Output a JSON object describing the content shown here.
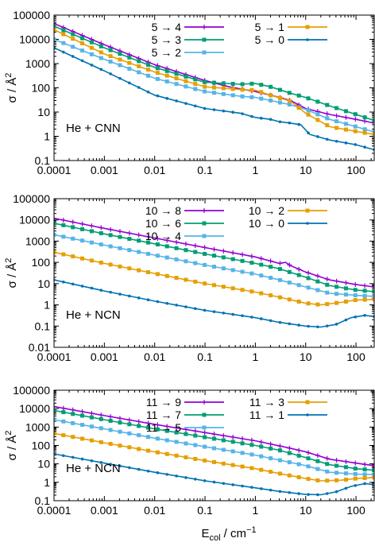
{
  "figure": {
    "xlabel": "E",
    "xlabel_sub": "col",
    "xlabel_unit": " / cm",
    "xlabel_sup": "−1",
    "ylabel": "σ / Å",
    "ylabel_sup": "2"
  },
  "chart_data": [
    {
      "type": "line",
      "system_label": "He + CNN",
      "xscale": "log",
      "yscale": "log",
      "xlim": [
        0.0001,
        230
      ],
      "ylim": [
        0.1,
        100000
      ],
      "x_ticks": [
        "0.0001",
        "0.001",
        "0.01",
        "0.1",
        "1",
        "10",
        "100"
      ],
      "y_ticks": [
        "0.1",
        "1",
        "10",
        "100",
        "1000",
        "10000",
        "100000"
      ],
      "legend_position": "top-right",
      "series": [
        {
          "name": "5 → 4",
          "color": "#9400d3",
          "marker": "plus",
          "points": [
            [
              0.0001,
              45000
            ],
            [
              0.001,
              6000
            ],
            [
              0.01,
              900
            ],
            [
              0.1,
              200
            ],
            [
              0.3,
              110
            ],
            [
              1,
              70
            ],
            [
              2,
              50
            ],
            [
              5,
              30
            ],
            [
              10,
              14
            ],
            [
              30,
              8
            ],
            [
              100,
              5
            ],
            [
              230,
              3.5
            ]
          ]
        },
        {
          "name": "5 → 3",
          "color": "#009e73",
          "marker": "square",
          "points": [
            [
              0.0001,
              35000
            ],
            [
              0.001,
              4500
            ],
            [
              0.01,
              700
            ],
            [
              0.1,
              170
            ],
            [
              0.5,
              140
            ],
            [
              1,
              150
            ],
            [
              2,
              110
            ],
            [
              5,
              60
            ],
            [
              10,
              40
            ],
            [
              30,
              18
            ],
            [
              100,
              8
            ],
            [
              230,
              4.5
            ]
          ]
        },
        {
          "name": "5 → 2",
          "color": "#56b4e9",
          "marker": "square",
          "points": [
            [
              0.0001,
              10000
            ],
            [
              0.001,
              1500
            ],
            [
              0.01,
              250
            ],
            [
              0.1,
              70
            ],
            [
              0.5,
              45
            ],
            [
              1,
              40
            ],
            [
              2,
              30
            ],
            [
              5,
              20
            ],
            [
              10,
              13
            ],
            [
              30,
              5
            ],
            [
              100,
              2.5
            ],
            [
              230,
              1.5
            ]
          ]
        },
        {
          "name": "5 → 1",
          "color": "#e69f00",
          "marker": "square",
          "points": [
            [
              0.0001,
              25000
            ],
            [
              0.001,
              2500
            ],
            [
              0.01,
              450
            ],
            [
              0.1,
              110
            ],
            [
              0.5,
              85
            ],
            [
              1,
              80
            ],
            [
              2,
              50
            ],
            [
              5,
              28
            ],
            [
              10,
              9
            ],
            [
              30,
              2.5
            ],
            [
              100,
              1.6
            ],
            [
              230,
              1.2
            ]
          ]
        },
        {
          "name": "5 → 0",
          "color": "#0072b2",
          "marker": "dot",
          "points": [
            [
              0.0001,
              4500
            ],
            [
              0.001,
              500
            ],
            [
              0.01,
              50
            ],
            [
              0.1,
              14
            ],
            [
              0.5,
              9
            ],
            [
              1,
              6
            ],
            [
              2,
              5
            ],
            [
              3,
              4
            ],
            [
              5,
              3.5
            ],
            [
              8,
              3
            ],
            [
              12,
              1.2
            ],
            [
              30,
              0.7
            ],
            [
              100,
              0.45
            ],
            [
              230,
              0.28
            ]
          ]
        }
      ]
    },
    {
      "type": "line",
      "system_label": "He + NCN",
      "xscale": "log",
      "yscale": "log",
      "xlim": [
        0.0001,
        230
      ],
      "ylim": [
        0.01,
        100000
      ],
      "x_ticks": [
        "0.0001",
        "0.001",
        "0.01",
        "0.1",
        "1",
        "10",
        "100"
      ],
      "y_ticks": [
        "0.01",
        "0.1",
        "1",
        "10",
        "100",
        "1000",
        "10000",
        "100000"
      ],
      "legend_position": "top-right",
      "series": [
        {
          "name": "10 → 8",
          "color": "#9400d3",
          "marker": "plus",
          "points": [
            [
              0.0001,
              12000
            ],
            [
              0.001,
              4000
            ],
            [
              0.01,
              1400
            ],
            [
              0.1,
              500
            ],
            [
              1,
              180
            ],
            [
              3,
              90
            ],
            [
              4,
              100
            ],
            [
              5,
              70
            ],
            [
              10,
              35
            ],
            [
              30,
              15
            ],
            [
              100,
              9
            ],
            [
              230,
              7
            ]
          ]
        },
        {
          "name": "10 → 6",
          "color": "#009e73",
          "marker": "square",
          "points": [
            [
              0.0001,
              7000
            ],
            [
              0.001,
              2200
            ],
            [
              0.01,
              750
            ],
            [
              0.1,
              250
            ],
            [
              1,
              90
            ],
            [
              3,
              50
            ],
            [
              10,
              20
            ],
            [
              30,
              8
            ],
            [
              100,
              5
            ],
            [
              230,
              4.2
            ]
          ]
        },
        {
          "name": "10 → 4",
          "color": "#56b4e9",
          "marker": "square",
          "points": [
            [
              0.0001,
              2000
            ],
            [
              0.001,
              650
            ],
            [
              0.01,
              220
            ],
            [
              0.1,
              75
            ],
            [
              1,
              28
            ],
            [
              3,
              15
            ],
            [
              10,
              7
            ],
            [
              30,
              3.5
            ],
            [
              100,
              2.8
            ],
            [
              230,
              2.5
            ]
          ]
        },
        {
          "name": "10 → 2",
          "color": "#e69f00",
          "marker": "square",
          "points": [
            [
              0.0001,
              300
            ],
            [
              0.001,
              90
            ],
            [
              0.01,
              30
            ],
            [
              0.1,
              10
            ],
            [
              1,
              4
            ],
            [
              3,
              2.3
            ],
            [
              10,
              1.2
            ],
            [
              20,
              1
            ],
            [
              50,
              1.3
            ],
            [
              100,
              1.7
            ],
            [
              230,
              1.8
            ]
          ]
        },
        {
          "name": "10 → 0",
          "color": "#0072b2",
          "marker": "dot",
          "points": [
            [
              0.0001,
              15
            ],
            [
              0.001,
              4.5
            ],
            [
              0.01,
              1.5
            ],
            [
              0.1,
              0.55
            ],
            [
              1,
              0.25
            ],
            [
              3,
              0.15
            ],
            [
              10,
              0.1
            ],
            [
              20,
              0.09
            ],
            [
              40,
              0.12
            ],
            [
              80,
              0.25
            ],
            [
              150,
              0.32
            ],
            [
              230,
              0.28
            ]
          ]
        }
      ]
    },
    {
      "type": "line",
      "system_label": "He + NCN",
      "xscale": "log",
      "yscale": "log",
      "xlim": [
        0.0001,
        230
      ],
      "ylim": [
        0.1,
        100000
      ],
      "x_ticks": [
        "0.0001",
        "0.001",
        "0.01",
        "0.1",
        "1",
        "10",
        "100"
      ],
      "y_ticks": [
        "0.1",
        "1",
        "10",
        "100",
        "1000",
        "10000",
        "100000"
      ],
      "legend_position": "top-right",
      "series": [
        {
          "name": "11 → 9",
          "color": "#9400d3",
          "marker": "plus",
          "points": [
            [
              0.0001,
              13000
            ],
            [
              0.001,
              4200
            ],
            [
              0.01,
              1400
            ],
            [
              0.1,
              500
            ],
            [
              1,
              180
            ],
            [
              4,
              80
            ],
            [
              10,
              45
            ],
            [
              30,
              18
            ],
            [
              100,
              11
            ],
            [
              230,
              8
            ]
          ]
        },
        {
          "name": "11 → 7",
          "color": "#009e73",
          "marker": "square",
          "points": [
            [
              0.0001,
              8000
            ],
            [
              0.001,
              2500
            ],
            [
              0.01,
              800
            ],
            [
              0.1,
              280
            ],
            [
              1,
              100
            ],
            [
              3,
              55
            ],
            [
              10,
              22
            ],
            [
              30,
              9
            ],
            [
              100,
              5.5
            ],
            [
              230,
              4.5
            ]
          ]
        },
        {
          "name": "11 → 5",
          "color": "#56b4e9",
          "marker": "square",
          "points": [
            [
              0.0001,
              2500
            ],
            [
              0.001,
              800
            ],
            [
              0.01,
              250
            ],
            [
              0.1,
              85
            ],
            [
              1,
              30
            ],
            [
              3,
              16
            ],
            [
              10,
              8
            ],
            [
              30,
              3.5
            ],
            [
              100,
              2.8
            ],
            [
              230,
              2.6
            ]
          ]
        },
        {
          "name": "11 → 3",
          "color": "#e69f00",
          "marker": "square",
          "points": [
            [
              0.0001,
              450
            ],
            [
              0.001,
              140
            ],
            [
              0.01,
              45
            ],
            [
              0.1,
              15
            ],
            [
              1,
              5.5
            ],
            [
              3,
              3
            ],
            [
              10,
              1.6
            ],
            [
              20,
              1.2
            ],
            [
              50,
              1.3
            ],
            [
              100,
              1.6
            ],
            [
              230,
              1.8
            ]
          ]
        },
        {
          "name": "11 → 1",
          "color": "#0072b2",
          "marker": "dot",
          "points": [
            [
              0.0001,
              35
            ],
            [
              0.001,
              11
            ],
            [
              0.01,
              3.5
            ],
            [
              0.1,
              1.2
            ],
            [
              1,
              0.5
            ],
            [
              3,
              0.32
            ],
            [
              10,
              0.22
            ],
            [
              20,
              0.21
            ],
            [
              40,
              0.3
            ],
            [
              80,
              0.6
            ],
            [
              150,
              0.85
            ],
            [
              230,
              0.75
            ]
          ]
        }
      ]
    }
  ]
}
